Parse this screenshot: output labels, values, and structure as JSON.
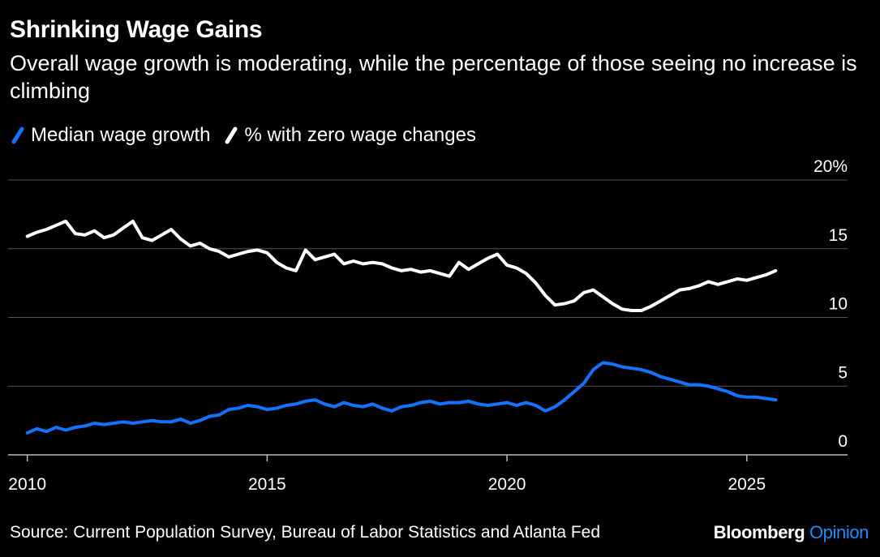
{
  "title": "Shrinking Wage Gains",
  "subtitle": "Overall wage growth is moderating, while the percentage of those seeing no increase is climbing",
  "source": "Source: Current Population Survey, Bureau of Labor Statistics and Atlanta Fed",
  "brand": {
    "name": "Bloomberg",
    "section": "Opinion"
  },
  "colors": {
    "background": "#000000",
    "median": "#1472ff",
    "zero": "#ffffff",
    "grid": "#555555",
    "text": "#ffffff"
  },
  "chart_data": {
    "type": "line",
    "title": "Shrinking Wage Gains",
    "x_ticks": [
      "2010",
      "2015",
      "2020",
      "2025"
    ],
    "y_ticks": [
      "0",
      "5",
      "10",
      "15",
      "20%"
    ],
    "ylim": [
      0,
      20
    ],
    "xlim": [
      2009.6,
      2027.1
    ],
    "grid": true,
    "legend_position": "top-left",
    "series": [
      {
        "name": "Median wage growth",
        "color": "#1472ff",
        "x": [
          2010.0,
          2010.2,
          2010.4,
          2010.6,
          2010.8,
          2011.0,
          2011.2,
          2011.4,
          2011.6,
          2011.8,
          2012.0,
          2012.2,
          2012.4,
          2012.6,
          2012.8,
          2013.0,
          2013.2,
          2013.4,
          2013.6,
          2013.8,
          2014.0,
          2014.2,
          2014.4,
          2014.6,
          2014.8,
          2015.0,
          2015.2,
          2015.4,
          2015.6,
          2015.8,
          2016.0,
          2016.2,
          2016.4,
          2016.6,
          2016.8,
          2017.0,
          2017.2,
          2017.4,
          2017.6,
          2017.8,
          2018.0,
          2018.2,
          2018.4,
          2018.6,
          2018.8,
          2019.0,
          2019.2,
          2019.4,
          2019.6,
          2019.8,
          2020.0,
          2020.2,
          2020.4,
          2020.6,
          2020.8,
          2021.0,
          2021.2,
          2021.4,
          2021.6,
          2021.8,
          2022.0,
          2022.2,
          2022.4,
          2022.6,
          2022.8,
          2023.0,
          2023.2,
          2023.4,
          2023.6,
          2023.8,
          2024.0,
          2024.2,
          2024.4,
          2024.6,
          2024.8,
          2025.0,
          2025.2,
          2025.4,
          2025.6
        ],
        "values": [
          1.6,
          1.9,
          1.7,
          2.0,
          1.8,
          2.0,
          2.1,
          2.3,
          2.2,
          2.3,
          2.4,
          2.3,
          2.4,
          2.5,
          2.4,
          2.4,
          2.6,
          2.3,
          2.5,
          2.8,
          2.9,
          3.3,
          3.4,
          3.6,
          3.5,
          3.3,
          3.4,
          3.6,
          3.7,
          3.9,
          4.0,
          3.7,
          3.5,
          3.8,
          3.6,
          3.5,
          3.7,
          3.4,
          3.2,
          3.5,
          3.6,
          3.8,
          3.9,
          3.7,
          3.8,
          3.8,
          3.9,
          3.7,
          3.6,
          3.7,
          3.8,
          3.6,
          3.8,
          3.6,
          3.2,
          3.5,
          4.0,
          4.6,
          5.2,
          6.2,
          6.7,
          6.6,
          6.4,
          6.3,
          6.2,
          6.0,
          5.7,
          5.5,
          5.3,
          5.1,
          5.1,
          5.0,
          4.8,
          4.6,
          4.3,
          4.2,
          4.2,
          4.1,
          4.0
        ]
      },
      {
        "name": "% with zero wage changes",
        "color": "#ffffff",
        "x": [
          2010.0,
          2010.2,
          2010.4,
          2010.6,
          2010.8,
          2011.0,
          2011.2,
          2011.4,
          2011.6,
          2011.8,
          2012.0,
          2012.2,
          2012.4,
          2012.6,
          2012.8,
          2013.0,
          2013.2,
          2013.4,
          2013.6,
          2013.8,
          2014.0,
          2014.2,
          2014.4,
          2014.6,
          2014.8,
          2015.0,
          2015.2,
          2015.4,
          2015.6,
          2015.8,
          2016.0,
          2016.2,
          2016.4,
          2016.6,
          2016.8,
          2017.0,
          2017.2,
          2017.4,
          2017.6,
          2017.8,
          2018.0,
          2018.2,
          2018.4,
          2018.6,
          2018.8,
          2019.0,
          2019.2,
          2019.4,
          2019.6,
          2019.8,
          2020.0,
          2020.2,
          2020.4,
          2020.6,
          2020.8,
          2021.0,
          2021.2,
          2021.4,
          2021.6,
          2021.8,
          2022.0,
          2022.2,
          2022.4,
          2022.6,
          2022.8,
          2023.0,
          2023.2,
          2023.4,
          2023.6,
          2023.8,
          2024.0,
          2024.2,
          2024.4,
          2024.6,
          2024.8,
          2025.0,
          2025.2,
          2025.4,
          2025.6
        ],
        "values": [
          15.9,
          16.2,
          16.4,
          16.7,
          17.0,
          16.1,
          16.0,
          16.3,
          15.8,
          16.0,
          16.5,
          17.0,
          15.8,
          15.6,
          16.0,
          16.4,
          15.7,
          15.2,
          15.4,
          15.0,
          14.8,
          14.4,
          14.6,
          14.8,
          14.9,
          14.7,
          14.0,
          13.6,
          13.4,
          14.9,
          14.2,
          14.4,
          14.6,
          13.9,
          14.1,
          13.9,
          14.0,
          13.9,
          13.6,
          13.4,
          13.5,
          13.3,
          13.4,
          13.2,
          13.0,
          14.0,
          13.5,
          13.9,
          14.3,
          14.6,
          13.8,
          13.6,
          13.2,
          12.5,
          11.6,
          10.9,
          11.0,
          11.2,
          11.8,
          12.0,
          11.5,
          11.0,
          10.6,
          10.5,
          10.5,
          10.8,
          11.2,
          11.6,
          12.0,
          12.1,
          12.3,
          12.6,
          12.4,
          12.6,
          12.8,
          12.7,
          12.9,
          13.1,
          13.4
        ]
      }
    ]
  }
}
